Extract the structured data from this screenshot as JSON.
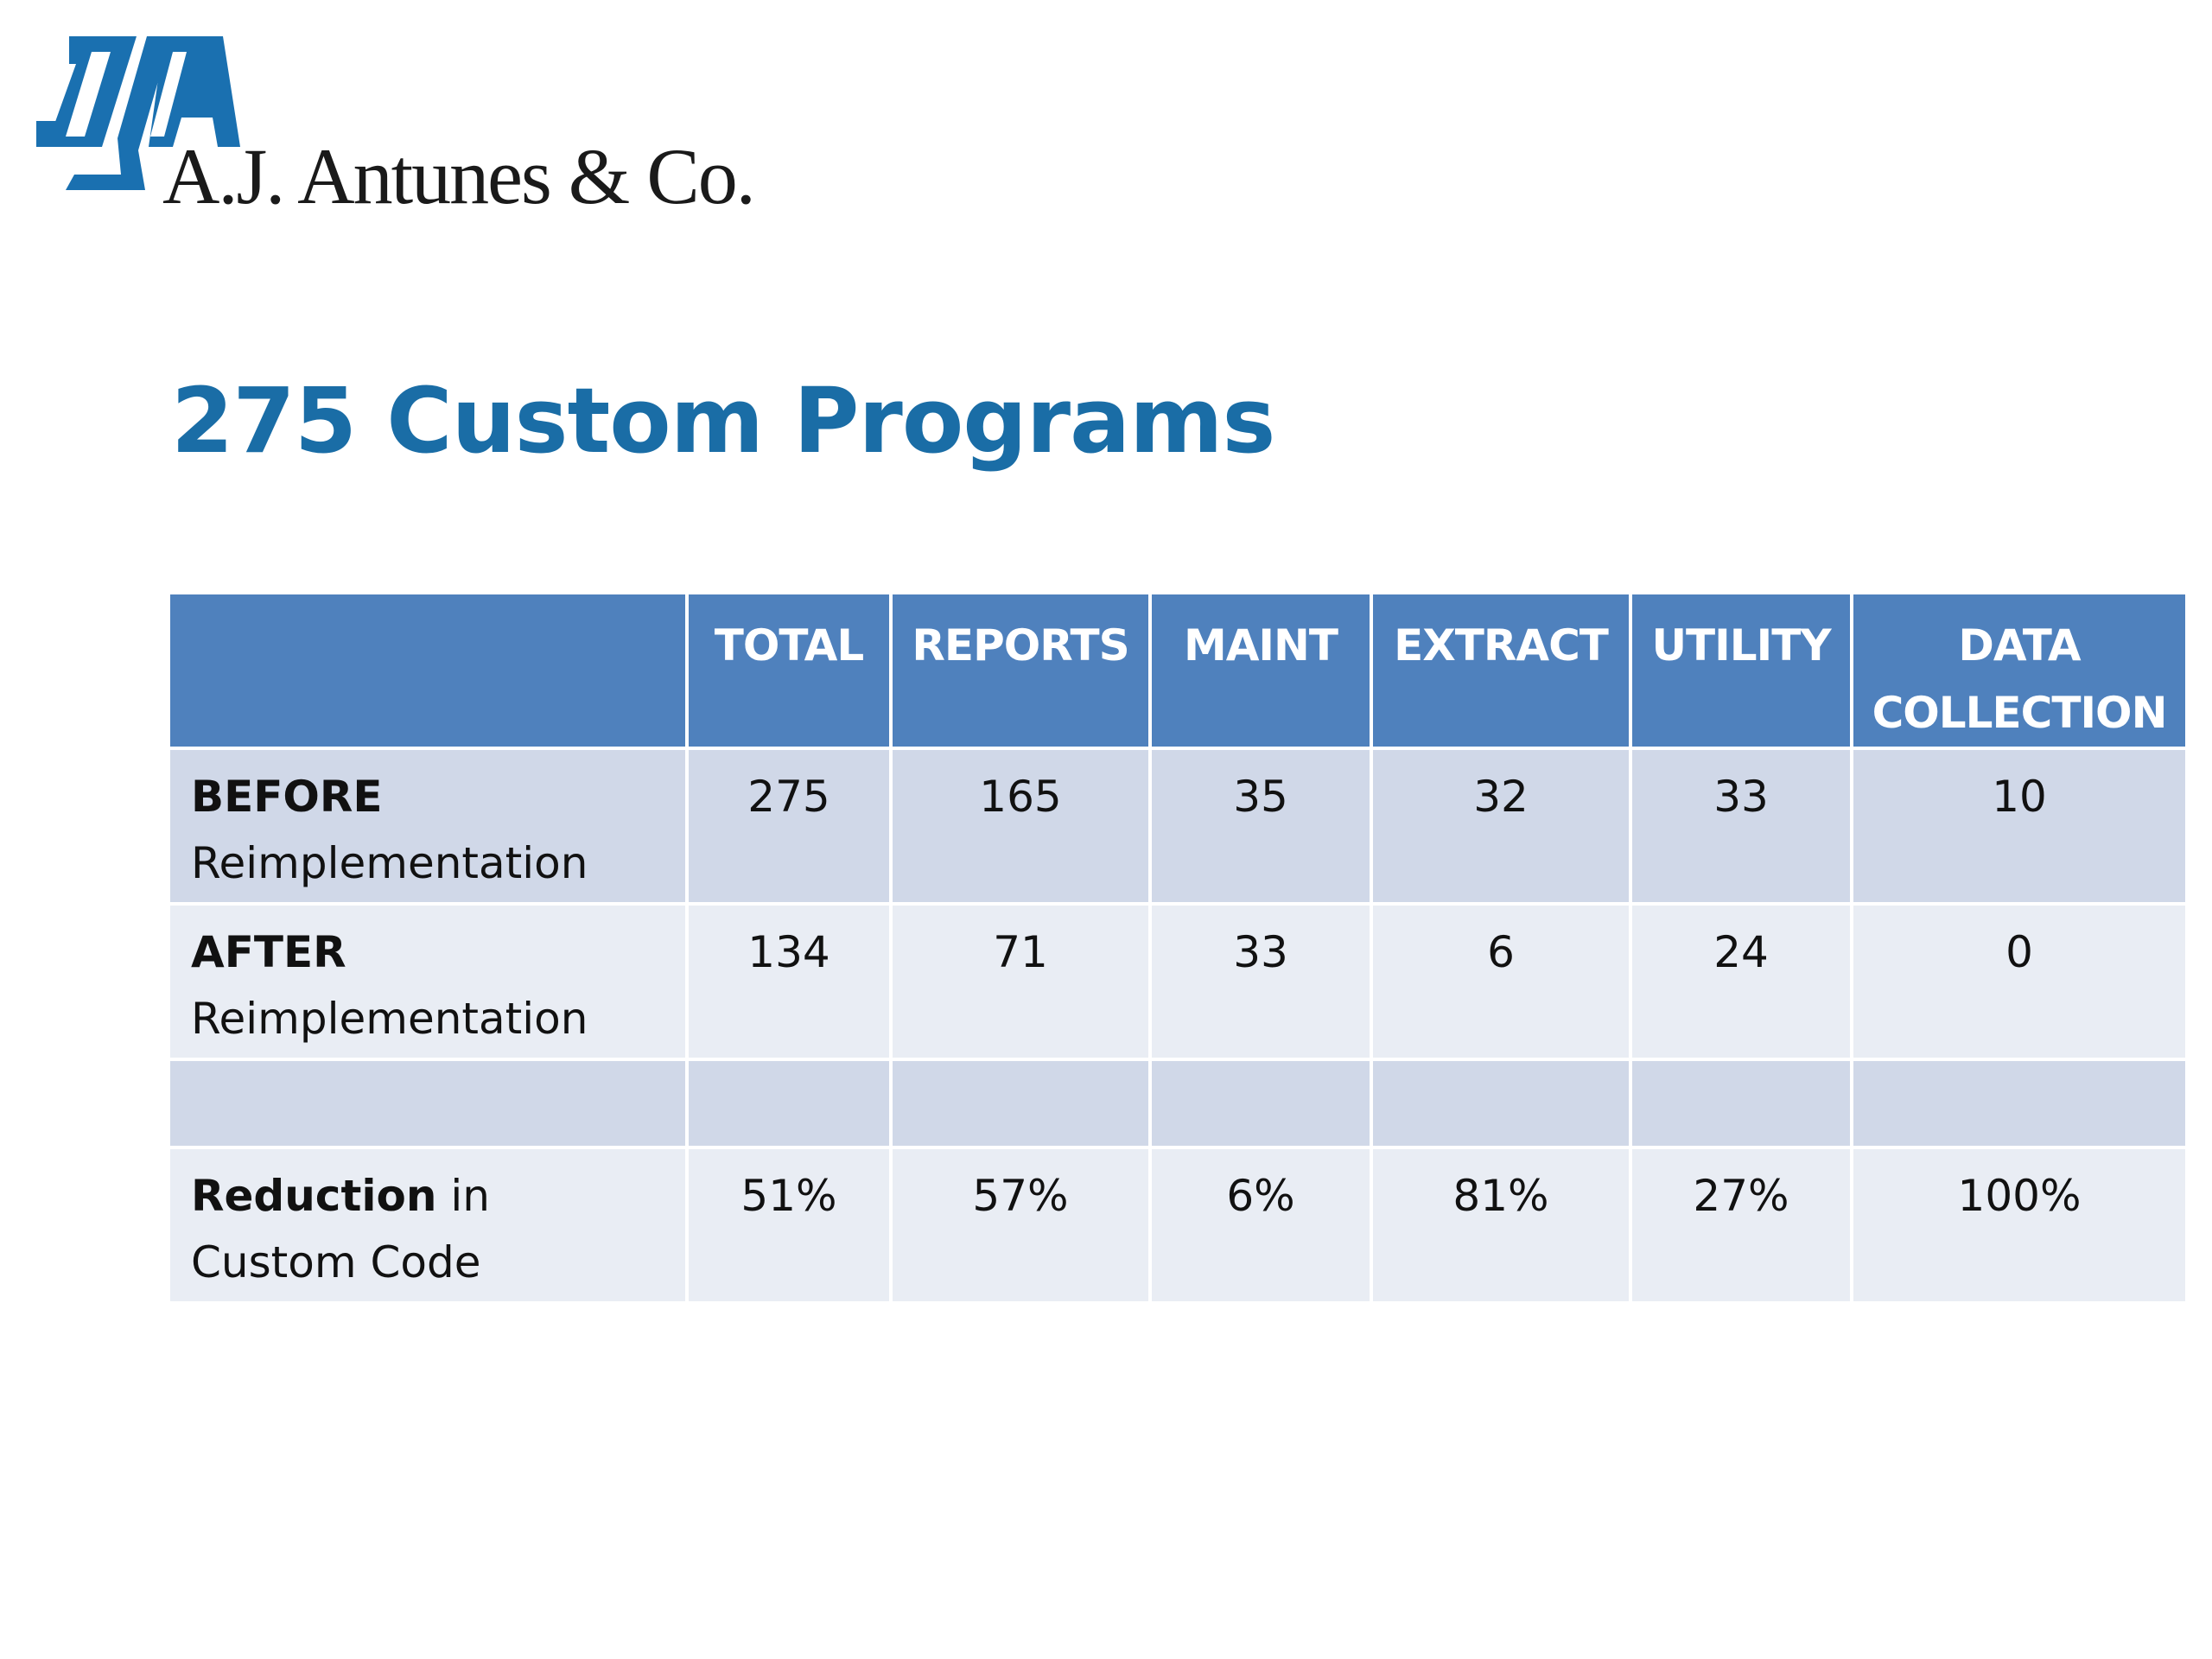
{
  "logo": {
    "company_name": "A.J. Antunes & Co.",
    "mark_name": "aj-logo-mark",
    "brand_color": "#1a70b0"
  },
  "title": "275 Custom Programs",
  "table": {
    "header": {
      "blank": "",
      "columns": [
        "TOTAL",
        "REPORTS",
        "MAINT",
        "EXTRACT",
        "UTILITY"
      ],
      "last_column_line1": "DATA",
      "last_column_line2": "COLLECTION"
    },
    "rows": [
      {
        "label_bold": "BEFORE",
        "label_rest": "Reimplementation",
        "values": [
          "275",
          "165",
          "35",
          "32",
          "33",
          "10"
        ]
      },
      {
        "label_bold": "AFTER",
        "label_rest": "Reimplementation",
        "values": [
          "134",
          "71",
          "33",
          "6",
          "24",
          "0"
        ]
      },
      {
        "label_bold": "Reduction",
        "label_inline": " in",
        "label_rest": "Custom Code",
        "values": [
          "51%",
          "57%",
          "6%",
          "81%",
          "27%",
          "100%"
        ]
      }
    ]
  },
  "colors": {
    "title": "#1a6da6",
    "header_bg": "#4f81bd",
    "row_dark": "#d0d8e8",
    "row_light": "#e9edf4"
  }
}
